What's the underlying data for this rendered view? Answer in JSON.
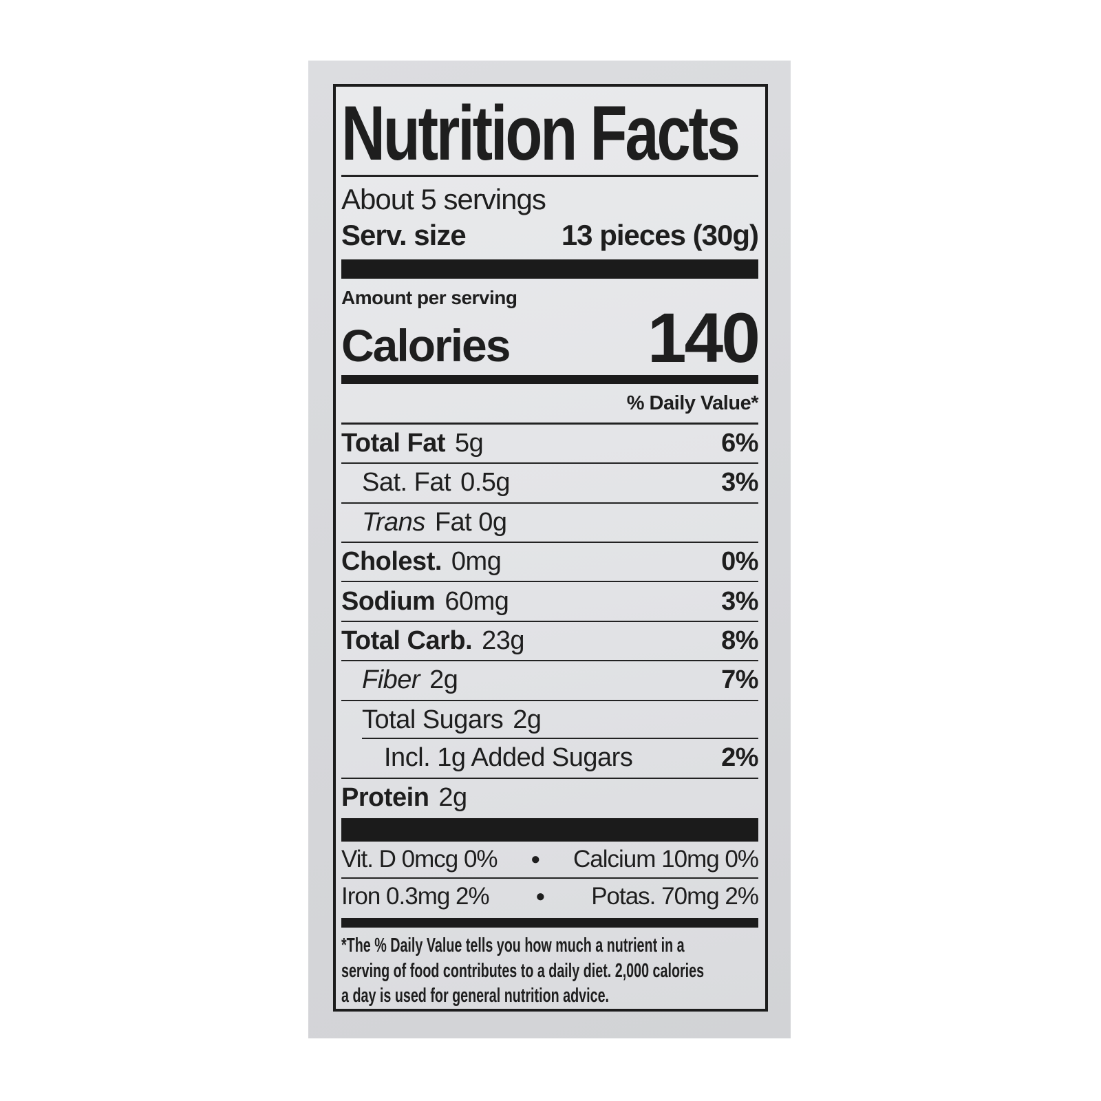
{
  "label": {
    "title": "Nutrition Facts",
    "servings": "About 5 servings",
    "serving_size_label": "Serv. size",
    "serving_size_value": "13 pieces (30g)",
    "amount_per_serving": "Amount per serving",
    "calories_label": "Calories",
    "calories_value": "140",
    "daily_value_header": "% Daily Value*",
    "rows": [
      {
        "name": "Total Fat",
        "amount": "5g",
        "dv": "6%"
      },
      {
        "name": "Sat. Fat",
        "amount": "0.5g",
        "dv": "3%"
      },
      {
        "name": "Trans",
        "amount": "Fat 0g",
        "dv": ""
      },
      {
        "name": "Cholest.",
        "amount": "0mg",
        "dv": "0%"
      },
      {
        "name": "Sodium",
        "amount": "60mg",
        "dv": "3%"
      },
      {
        "name": "Total Carb.",
        "amount": "23g",
        "dv": "8%"
      },
      {
        "name": "Fiber",
        "amount": "2g",
        "dv": "7%"
      },
      {
        "name": "Total Sugars",
        "amount": "2g",
        "dv": ""
      },
      {
        "name": "Incl. 1g Added Sugars",
        "amount": "",
        "dv": "2%"
      },
      {
        "name": "Protein",
        "amount": "2g",
        "dv": ""
      }
    ],
    "micronutrients": {
      "bullet": "●",
      "row1_left": "Vit. D 0mcg 0%",
      "row1_right": "Calcium 10mg 0%",
      "row2_left": "Iron 0.3mg 2%",
      "row2_right": "Potas. 70mg 2%"
    },
    "footnote_lines": [
      "*The % Daily Value tells you how much a nutrient in a",
      "serving of food contributes to a daily diet. 2,000 calories",
      "a day is used for general nutrition advice."
    ]
  },
  "colors": {
    "ink": "#1e1e1e",
    "bar": "#1b1b1b",
    "paper": "#e4e5e7",
    "package": "#d7d8da",
    "page": "#ffffff"
  }
}
